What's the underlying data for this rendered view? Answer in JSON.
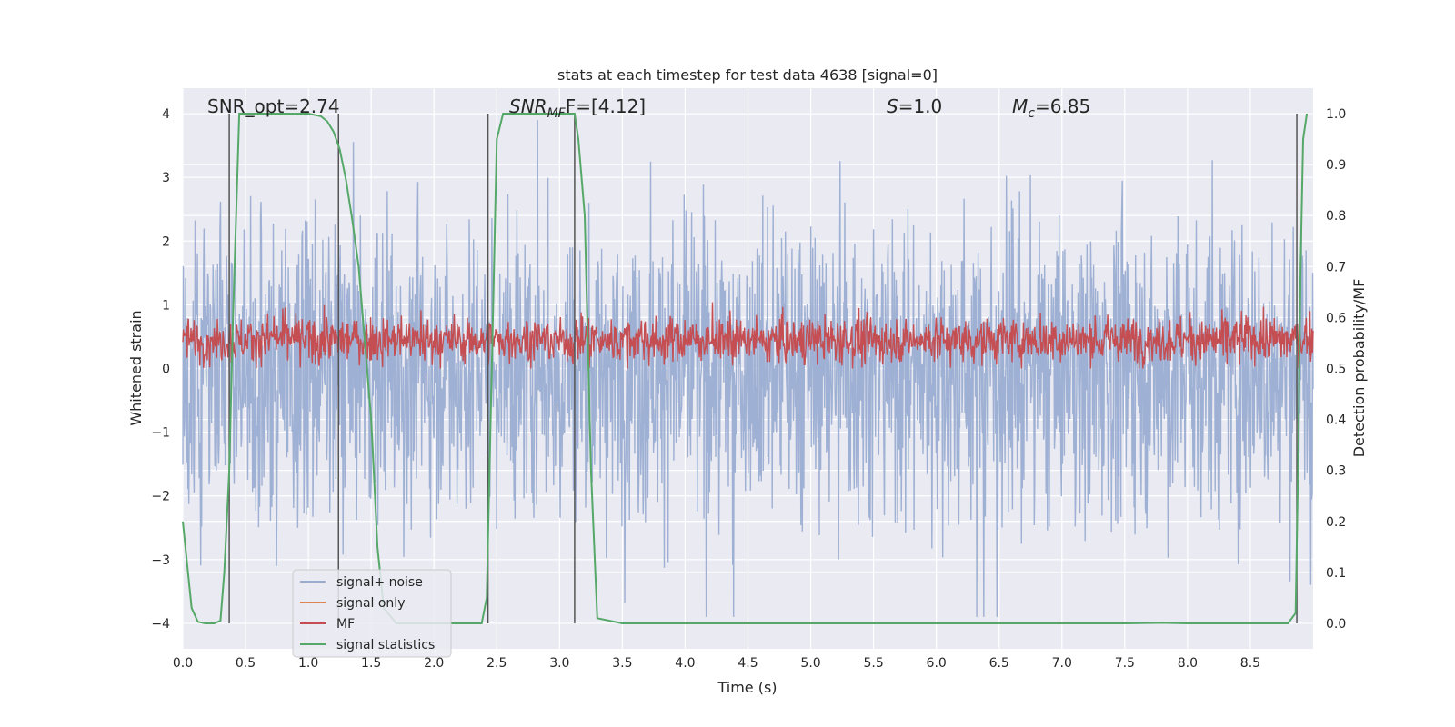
{
  "chart_data": {
    "type": "line",
    "title": "stats at each timestep for test data 4638 [signal=0]",
    "xlabel": "Time (s)",
    "ylabel": "Whitened strain",
    "ylabel_right": "Detection probability/MF",
    "xlim": [
      0.0,
      9.0
    ],
    "ylim": [
      -4.4,
      4.4
    ],
    "ylim_right": [
      -0.05,
      1.05
    ],
    "x_ticks": [
      "0.0",
      "0.5",
      "1.0",
      "1.5",
      "2.0",
      "2.5",
      "3.0",
      "3.5",
      "4.0",
      "4.5",
      "5.0",
      "5.5",
      "6.0",
      "6.5",
      "7.0",
      "7.5",
      "8.0",
      "8.5"
    ],
    "y_ticks": [
      "4",
      "3",
      "2",
      "1",
      "0",
      "−1",
      "−2",
      "−3",
      "−4"
    ],
    "y_ticks_right": [
      "1.0",
      "0.9",
      "0.8",
      "0.7",
      "0.6",
      "0.5",
      "0.4",
      "0.3",
      "0.2",
      "0.1",
      "0.0"
    ],
    "grid": true,
    "annotations": {
      "snr_opt": "SNR_opt=2.74",
      "snr_mf_main": "SNR",
      "snr_mf_sub": "MF",
      "snr_mf_value": "F=[4.12]",
      "s_label": "S",
      "s_value": "=1.0",
      "mc_main": "M",
      "mc_sub": "c",
      "mc_value": "=6.85"
    },
    "legend": {
      "position": "lower-left",
      "entries": [
        "signal+ noise",
        "signal only",
        "MF",
        "signal statistics"
      ]
    },
    "colors": {
      "background": "#eaeaf2",
      "grid": "#ffffff",
      "noise": "#9aadd1",
      "signal_only": "#dd8452",
      "mf": "#c44e52",
      "statistics": "#55a868",
      "vlines": "#555555"
    },
    "series": [
      {
        "name": "signal statistics",
        "axis": "right",
        "x": [
          0.0,
          0.07,
          0.12,
          0.18,
          0.25,
          0.3,
          0.33,
          0.37,
          0.4,
          0.45,
          0.5,
          0.6,
          0.8,
          1.0,
          1.1,
          1.15,
          1.2,
          1.25,
          1.3,
          1.35,
          1.4,
          1.45,
          1.5,
          1.55,
          1.6,
          1.7,
          2.0,
          2.2,
          2.38,
          2.42,
          2.46,
          2.5,
          2.55,
          2.7,
          3.0,
          3.12,
          3.15,
          3.2,
          3.25,
          3.3,
          3.5,
          4.0,
          5.0,
          6.0,
          7.0,
          7.5,
          7.8,
          8.0,
          8.5,
          8.8,
          8.86,
          8.88,
          8.9,
          8.92,
          8.95
        ],
        "values": [
          0.2,
          0.03,
          0.003,
          0.0,
          0.0,
          0.005,
          0.1,
          0.3,
          0.6,
          1.0,
          1.0,
          1.0,
          1.0,
          1.0,
          0.995,
          0.985,
          0.965,
          0.93,
          0.87,
          0.79,
          0.7,
          0.55,
          0.4,
          0.15,
          0.03,
          0.0,
          0.0,
          0.0,
          0.0,
          0.05,
          0.5,
          0.95,
          1.0,
          1.0,
          1.0,
          1.0,
          0.95,
          0.8,
          0.3,
          0.01,
          0.0,
          0.0,
          0.0,
          0.0,
          0.0,
          0.0,
          0.001,
          0.0,
          0.0,
          0.0,
          0.02,
          0.3,
          0.7,
          0.95,
          1.0
        ]
      },
      {
        "name": "detection boundaries",
        "axis": "right",
        "x": [
          0.37,
          1.24,
          2.43,
          3.12,
          8.87
        ],
        "range": [
          0.0,
          1.0
        ]
      }
    ]
  }
}
